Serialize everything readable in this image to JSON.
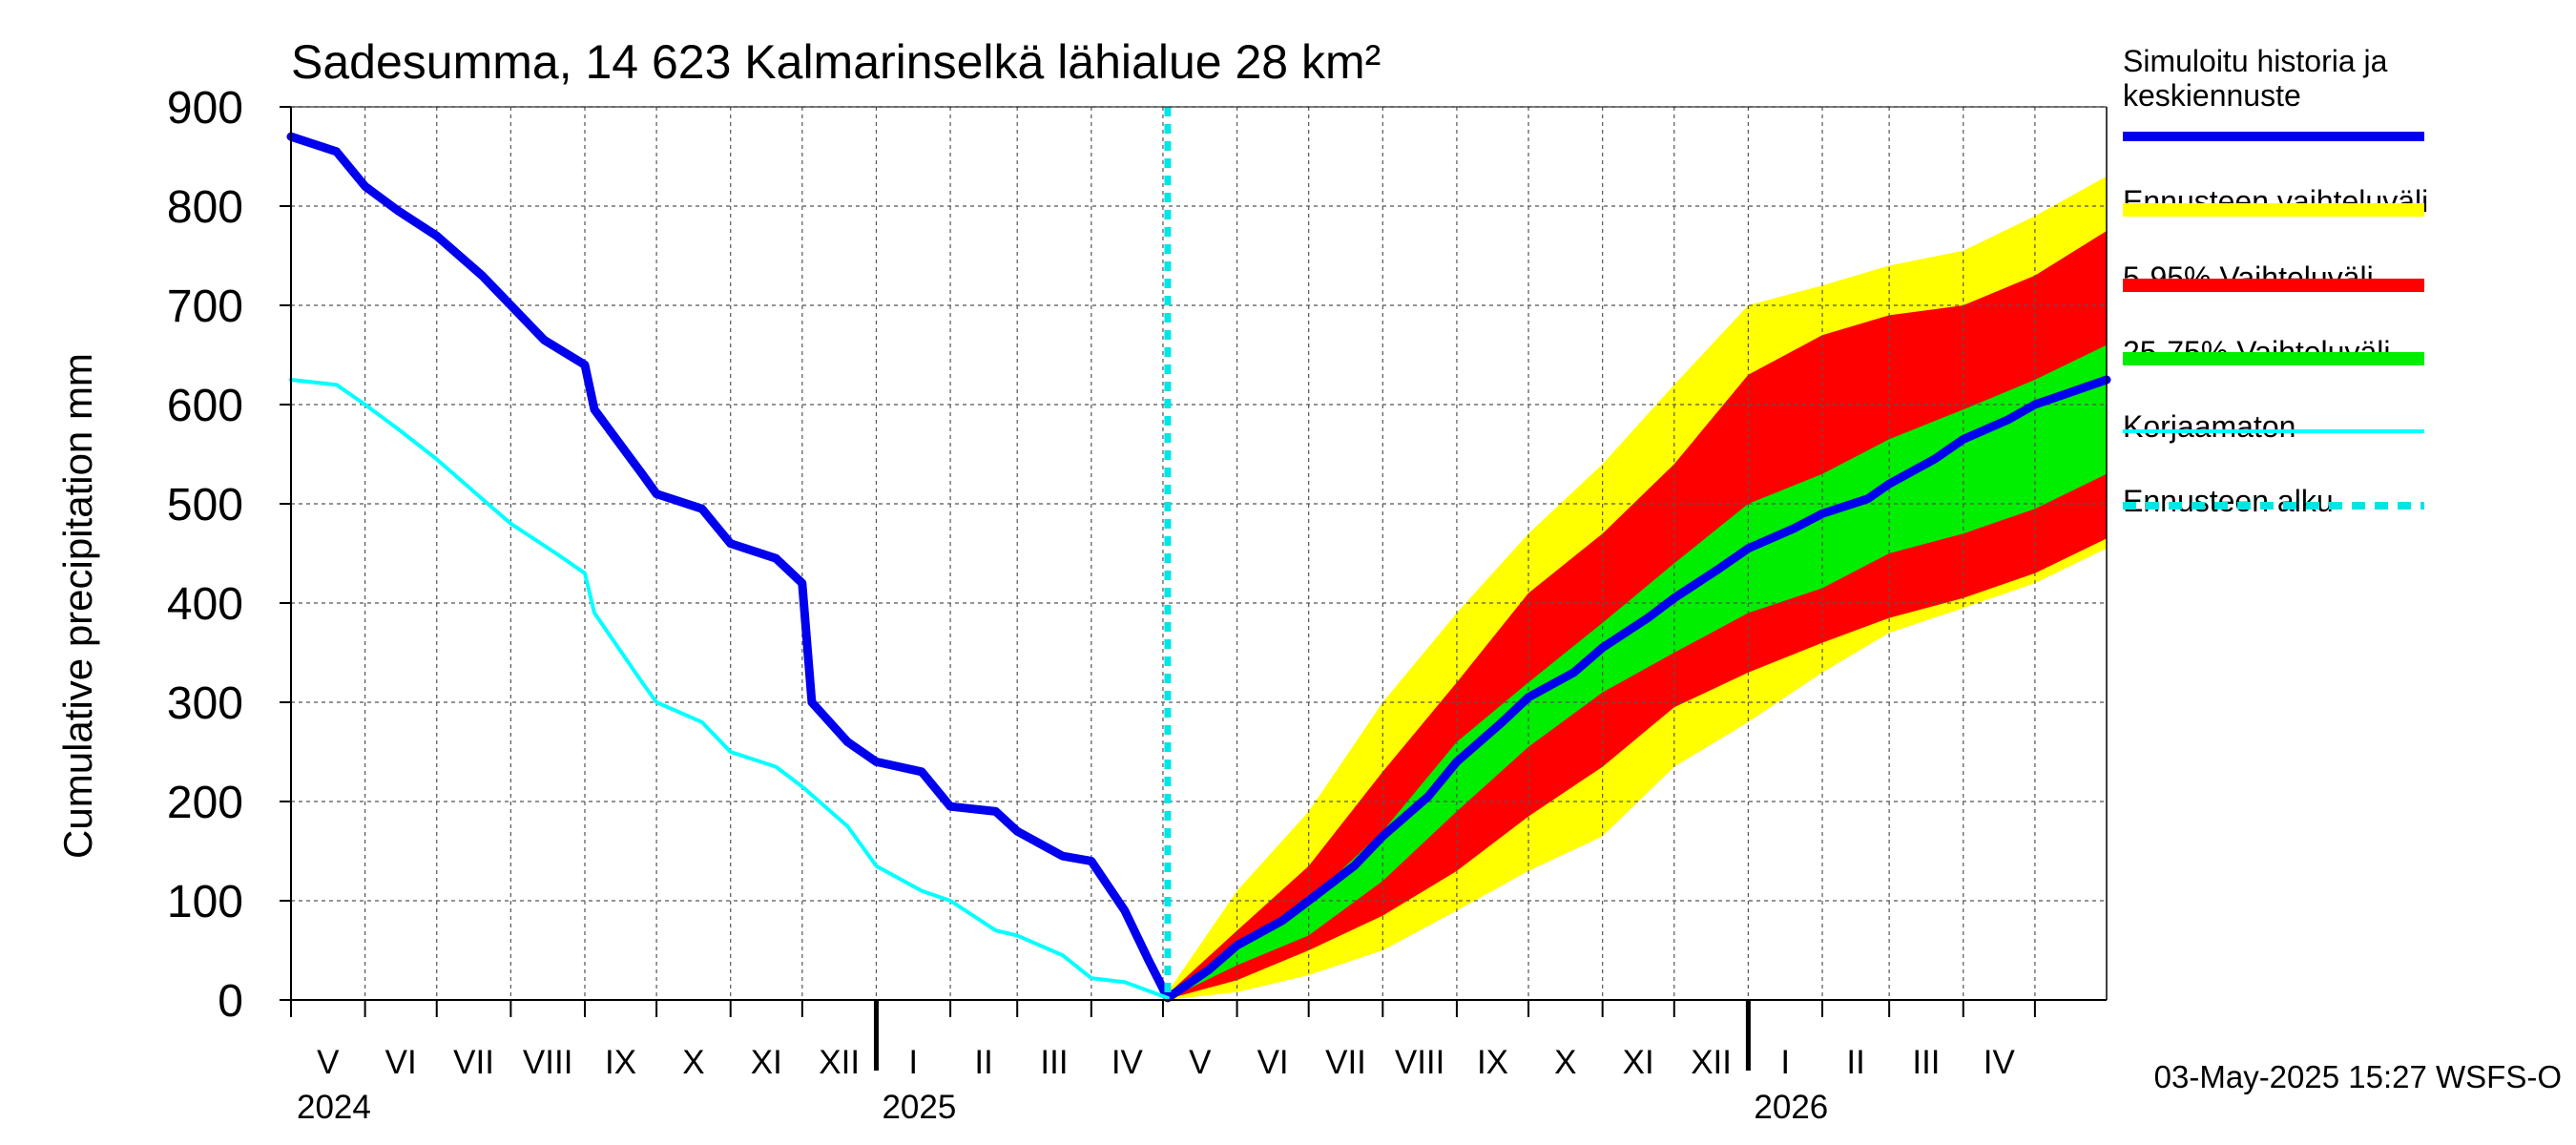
{
  "chart_data": {
    "type": "area",
    "title": "Sadesumma, 14 623 Kalmarinselkä lähialue 28 km²",
    "ylabel": "Cumulative precipitation   mm",
    "xlabel": "",
    "ylim": [
      0,
      900
    ],
    "yticks": [
      "0",
      "100",
      "200",
      "300",
      "400",
      "500",
      "600",
      "700",
      "800",
      "900"
    ],
    "xlim": [
      "2024-05-01",
      "2026-05-31"
    ],
    "grid": true,
    "months": [
      "V",
      "VI",
      "VII",
      "VIII",
      "IX",
      "X",
      "XI",
      "XII",
      "I",
      "II",
      "III",
      "IV",
      "V",
      "VI",
      "VII",
      "VIII",
      "IX",
      "X",
      "XI",
      "XII",
      "I",
      "II",
      "III",
      "IV"
    ],
    "years": [
      "2024",
      "2025",
      "2026"
    ],
    "forecast_start": "2025-05-03",
    "legend_position": "right",
    "legend": [
      {
        "label": "Simuloitu historia ja keskiennuste",
        "color": "#0000ee",
        "style": "thick"
      },
      {
        "label": "Ennusteen vaihteluväli",
        "color": "#ffff00",
        "style": "band"
      },
      {
        "label": "5-95% Vaihteluväli",
        "color": "#ff0000",
        "style": "band"
      },
      {
        "label": "25-75% Vaihteluväli",
        "color": "#00ee00",
        "style": "band"
      },
      {
        "label": "Korjaamaton",
        "color": "#00ffff",
        "style": "thin"
      },
      {
        "label": "Ennusteen alku",
        "color": "#00e5e5",
        "style": "dashed"
      }
    ],
    "series": [
      {
        "name": "Simuloitu historia ja keskiennuste",
        "color": "#0000ee",
        "x": [
          "2024-05-01",
          "2024-05-20",
          "2024-06-01",
          "2024-06-15",
          "2024-07-01",
          "2024-07-20",
          "2024-08-01",
          "2024-08-15",
          "2024-09-01",
          "2024-09-05",
          "2024-09-25",
          "2024-10-01",
          "2024-10-20",
          "2024-11-01",
          "2024-11-20",
          "2024-12-01",
          "2024-12-05",
          "2024-12-20",
          "2025-01-01",
          "2025-01-20",
          "2025-02-01",
          "2025-02-20",
          "2025-03-01",
          "2025-03-20",
          "2025-04-01",
          "2025-04-15",
          "2025-04-25",
          "2025-05-03",
          "2025-05-20",
          "2025-06-01",
          "2025-06-20",
          "2025-07-01",
          "2025-07-20",
          "2025-08-01",
          "2025-08-20",
          "2025-09-01",
          "2025-09-20",
          "2025-10-01",
          "2025-10-20",
          "2025-11-01",
          "2025-11-20",
          "2025-12-01",
          "2025-12-20",
          "2026-01-01",
          "2026-01-20",
          "2026-02-01",
          "2026-02-20",
          "2026-03-01",
          "2026-03-20",
          "2026-04-01",
          "2026-04-20",
          "2026-05-01",
          "2026-05-31"
        ],
        "values": [
          870,
          855,
          820,
          795,
          770,
          730,
          700,
          665,
          640,
          595,
          530,
          510,
          495,
          460,
          445,
          420,
          300,
          260,
          240,
          230,
          195,
          190,
          170,
          145,
          140,
          90,
          40,
          2,
          30,
          55,
          80,
          100,
          135,
          165,
          205,
          240,
          280,
          305,
          330,
          355,
          385,
          405,
          435,
          455,
          475,
          490,
          505,
          520,
          545,
          565,
          585,
          600,
          625
        ]
      },
      {
        "name": "Korjaamaton",
        "color": "#00ffff",
        "x": [
          "2024-05-01",
          "2024-05-20",
          "2024-06-01",
          "2024-06-15",
          "2024-07-01",
          "2024-07-20",
          "2024-08-01",
          "2024-08-20",
          "2024-09-01",
          "2024-09-05",
          "2024-09-25",
          "2024-10-01",
          "2024-10-20",
          "2024-11-01",
          "2024-11-20",
          "2024-12-01",
          "2024-12-20",
          "2025-01-01",
          "2025-01-20",
          "2025-02-01",
          "2025-02-20",
          "2025-03-01",
          "2025-03-20",
          "2025-04-01",
          "2025-04-15",
          "2025-05-03"
        ],
        "values": [
          625,
          620,
          600,
          575,
          545,
          505,
          480,
          450,
          430,
          390,
          320,
          300,
          280,
          250,
          235,
          215,
          175,
          135,
          110,
          100,
          70,
          65,
          45,
          22,
          18,
          2
        ]
      }
    ],
    "bands": [
      {
        "name": "Ennusteen vaihteluväli",
        "color": "#ffff00",
        "x": [
          "2025-05-03",
          "2025-06-01",
          "2025-07-01",
          "2025-08-01",
          "2025-09-01",
          "2025-10-01",
          "2025-11-01",
          "2025-12-01",
          "2026-01-01",
          "2026-02-01",
          "2026-03-01",
          "2026-04-01",
          "2026-05-01",
          "2026-05-31"
        ],
        "upper": [
          8,
          110,
          190,
          300,
          390,
          470,
          540,
          620,
          700,
          720,
          740,
          755,
          790,
          830
        ],
        "lower": [
          0,
          8,
          25,
          50,
          90,
          130,
          165,
          235,
          280,
          330,
          370,
          395,
          420,
          455
        ]
      },
      {
        "name": "5-95% Vaihteluväli",
        "color": "#ff0000",
        "x": [
          "2025-05-03",
          "2025-06-01",
          "2025-07-01",
          "2025-08-01",
          "2025-09-01",
          "2025-10-01",
          "2025-11-01",
          "2025-12-01",
          "2026-01-01",
          "2026-02-01",
          "2026-03-01",
          "2026-04-01",
          "2026-05-01",
          "2026-05-31"
        ],
        "upper": [
          6,
          70,
          135,
          230,
          320,
          410,
          470,
          540,
          630,
          670,
          690,
          700,
          730,
          775
        ],
        "lower": [
          1,
          20,
          50,
          85,
          130,
          185,
          235,
          295,
          330,
          360,
          385,
          405,
          430,
          465
        ]
      },
      {
        "name": "25-75% Vaihteluväli",
        "color": "#00ee00",
        "x": [
          "2025-05-03",
          "2025-06-01",
          "2025-07-01",
          "2025-08-01",
          "2025-09-01",
          "2025-10-01",
          "2025-11-01",
          "2025-12-01",
          "2026-01-01",
          "2026-02-01",
          "2026-03-01",
          "2026-04-01",
          "2026-05-01",
          "2026-05-31"
        ],
        "upper": [
          3,
          55,
          100,
          170,
          260,
          320,
          380,
          440,
          500,
          530,
          565,
          595,
          625,
          660
        ],
        "lower": [
          1,
          35,
          65,
          120,
          190,
          255,
          310,
          350,
          390,
          415,
          450,
          470,
          495,
          530
        ]
      }
    ]
  },
  "footer": {
    "timestamp": "03-May-2025 15:27 WSFS-O"
  }
}
